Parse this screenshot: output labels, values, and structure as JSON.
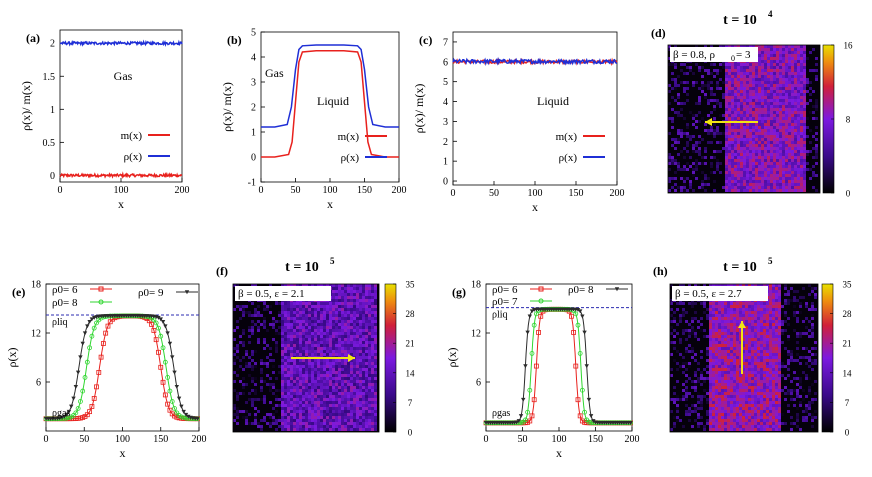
{
  "colors": {
    "m_series": "#e8211d",
    "rho_series": "#1f2fd6",
    "rho0_6": "#e8211d",
    "rho0_7": "#2fd62f",
    "rho0_8": "#2fd62f",
    "rho0_8_g": "#2b2b2b",
    "rho0_9": "#2b2b2b",
    "arrow": "#f2e414",
    "dashed": "#2b2bb0",
    "cmap_low": "#000000",
    "cmap_mid": "#7c19e0",
    "cmap_high": "#e8e000"
  },
  "chart_data": [
    {
      "id": "a",
      "type": "line",
      "panel_label": "(a)",
      "xlabel": "x",
      "ylabel": "ρ(x)/ m(x)",
      "xlim": [
        0,
        200
      ],
      "ylim": [
        -0.1,
        2.2
      ],
      "xticks": [
        "0",
        "100",
        "200"
      ],
      "yticks": [
        "0",
        "0.5",
        "1",
        "1.5",
        "2"
      ],
      "annotations": [
        "Gas"
      ],
      "series": [
        {
          "name": "m(x)",
          "color_key": "m_series",
          "x": [
            0,
            200
          ],
          "y": [
            0.0,
            0.0
          ],
          "noise": 0.02
        },
        {
          "name": "ρ(x)",
          "color_key": "rho_series",
          "x": [
            0,
            200
          ],
          "y": [
            2.0,
            2.0
          ],
          "noise": 0.02
        }
      ]
    },
    {
      "id": "b",
      "type": "line",
      "panel_label": "(b)",
      "xlabel": "x",
      "ylabel": "ρ(x)/ m(x)",
      "xlim": [
        0,
        200
      ],
      "ylim": [
        -1,
        5
      ],
      "xticks": [
        "0",
        "50",
        "100",
        "150",
        "200"
      ],
      "yticks": [
        "-1",
        "0",
        "1",
        "2",
        "3",
        "4",
        "5"
      ],
      "annotations": [
        "Gas",
        "Liquid"
      ],
      "series": [
        {
          "name": "m(x)",
          "color_key": "m_series",
          "x": [
            0,
            20,
            40,
            45,
            50,
            55,
            60,
            80,
            100,
            120,
            140,
            145,
            150,
            155,
            160,
            180,
            200
          ],
          "y": [
            0,
            0,
            0.1,
            0.6,
            2.2,
            3.8,
            4.2,
            4.25,
            4.25,
            4.25,
            4.2,
            3.8,
            2.2,
            0.6,
            0.1,
            0,
            0
          ]
        },
        {
          "name": "ρ(x)",
          "color_key": "rho_series",
          "x": [
            0,
            20,
            38,
            44,
            50,
            55,
            60,
            80,
            100,
            120,
            140,
            145,
            150,
            156,
            162,
            180,
            200
          ],
          "y": [
            1.2,
            1.2,
            1.3,
            2.0,
            3.5,
            4.3,
            4.45,
            4.48,
            4.48,
            4.48,
            4.45,
            4.3,
            3.5,
            2.0,
            1.3,
            1.2,
            1.2
          ]
        }
      ]
    },
    {
      "id": "c",
      "type": "line",
      "panel_label": "(c)",
      "xlabel": "x",
      "ylabel": "ρ(x)/ m(x)",
      "xlim": [
        0,
        200
      ],
      "ylim": [
        -0.2,
        7.5
      ],
      "xticks": [
        "0",
        "50",
        "100",
        "150",
        "200"
      ],
      "yticks": [
        "0",
        "1",
        "2",
        "3",
        "4",
        "5",
        "6",
        "7"
      ],
      "annotations": [
        "Liquid"
      ],
      "series": [
        {
          "name": "m(x)",
          "color_key": "m_series",
          "x": [
            0,
            200
          ],
          "y": [
            6.0,
            6.0
          ],
          "noise": 0.08
        },
        {
          "name": "ρ(x)",
          "color_key": "rho_series",
          "x": [
            0,
            200
          ],
          "y": [
            6.02,
            6.02
          ],
          "noise": 0.1
        }
      ]
    },
    {
      "id": "e",
      "type": "line",
      "panel_label": "(e)",
      "xlabel": "x",
      "ylabel": "ρ(x)",
      "xlim": [
        0,
        200
      ],
      "ylim": [
        0,
        18
      ],
      "xticks": [
        "0",
        "50",
        "100",
        "150",
        "200"
      ],
      "yticks": [
        "6",
        "12",
        "18"
      ],
      "annotations": [
        "ρliq",
        "ρgas"
      ],
      "dashed_y": 14.2,
      "series": [
        {
          "name": "ρ0= 6",
          "color_key": "rho0_6",
          "marker": "square",
          "center": 110,
          "half_width": 40,
          "high": 14.1,
          "low": 1.5,
          "steep": 5
        },
        {
          "name": "ρ0= 8",
          "color_key": "rho0_8",
          "marker": "circle",
          "center": 105,
          "half_width": 52,
          "high": 14.1,
          "low": 1.5,
          "steep": 5
        },
        {
          "name": "ρ0= 9",
          "color_key": "rho0_9",
          "marker": "triangle",
          "center": 105,
          "half_width": 62,
          "high": 14.1,
          "low": 1.5,
          "steep": 5
        }
      ]
    },
    {
      "id": "g",
      "type": "line",
      "panel_label": "(g)",
      "xlabel": "x",
      "ylabel": "ρ(x)",
      "xlim": [
        0,
        200
      ],
      "ylim": [
        0,
        18
      ],
      "xticks": [
        "0",
        "50",
        "100",
        "150",
        "200"
      ],
      "yticks": [
        "6",
        "12",
        "18"
      ],
      "annotations": [
        "ρliq",
        "ρgas"
      ],
      "dashed_y": 15.1,
      "series": [
        {
          "name": "ρ0= 6",
          "color_key": "rho0_6",
          "marker": "square",
          "center": 96,
          "half_width": 27,
          "high": 14.9,
          "low": 1.0,
          "steep": 2.2
        },
        {
          "name": "ρ0= 7",
          "color_key": "rho0_7",
          "marker": "circle",
          "center": 96,
          "half_width": 34,
          "high": 14.9,
          "low": 1.0,
          "steep": 2.2
        },
        {
          "name": "ρ0= 8",
          "color_key": "rho0_8_g",
          "marker": "triangle",
          "center": 96,
          "half_width": 42,
          "high": 14.9,
          "low": 1.0,
          "steep": 2.2
        }
      ]
    },
    {
      "id": "d",
      "type": "heatmap",
      "panel_label": "(d)",
      "title": "t = 10",
      "title_exp": "4",
      "inset": "β = 0.8, ρ",
      "inset_sub": "0",
      "inset_tail": " = 3",
      "colorbar_ticks": [
        "16",
        "8",
        "0"
      ],
      "cmax": 16,
      "band": [
        0.39,
        0.92
      ],
      "band_level": 0.5,
      "gas_level": 0.05,
      "arrow": "left"
    },
    {
      "id": "f",
      "type": "heatmap",
      "panel_label": "(f)",
      "title": "t = 10",
      "title_exp": "5",
      "inset": "β = 0.5, ε = 2.1",
      "colorbar_ticks": [
        "35",
        "28",
        "21",
        "14",
        "7",
        "0"
      ],
      "cmax": 35,
      "band": [
        0.34,
        1.0
      ],
      "band_level": 0.4,
      "gas_level": 0.04,
      "arrow": "right"
    },
    {
      "id": "h",
      "type": "heatmap",
      "panel_label": "(h)",
      "title": "t = 10",
      "title_exp": "5",
      "inset": "β = 0.5, ε = 2.7",
      "colorbar_ticks": [
        "35",
        "28",
        "21",
        "14",
        "7",
        "0"
      ],
      "cmax": 35,
      "band": [
        0.27,
        0.76
      ],
      "band_level": 0.55,
      "gas_level": 0.04,
      "arrow": "up"
    }
  ]
}
